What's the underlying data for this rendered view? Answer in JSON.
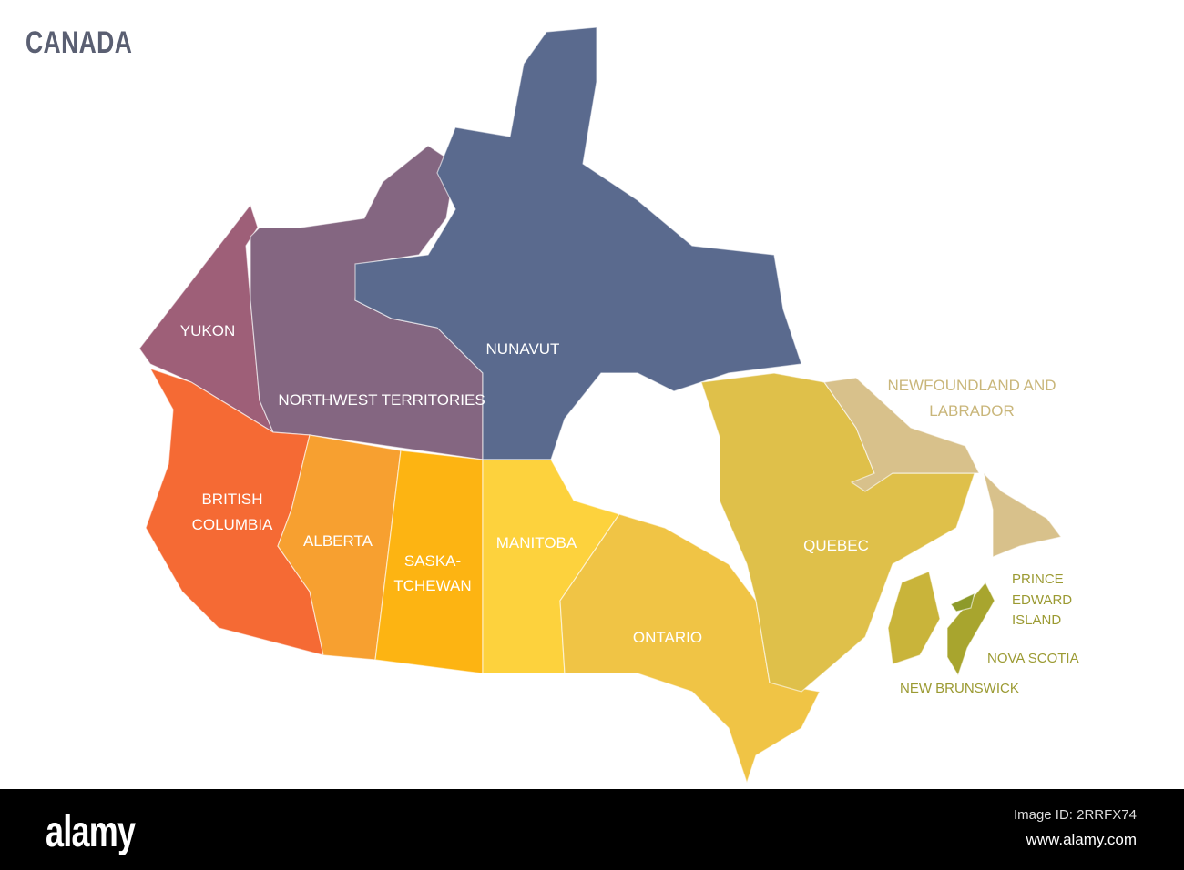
{
  "title": "CANADA",
  "regions": {
    "yukon": {
      "label": "YUKON",
      "color": "#9e5f78"
    },
    "nwt": {
      "label": "NORTHWEST TERRITORIES",
      "color": "#846681"
    },
    "nunavut": {
      "label": "NUNAVUT",
      "color": "#5a6a8e"
    },
    "bc": {
      "label1": "BRITISH",
      "label2": "COLUMBIA",
      "color": "#f56a34"
    },
    "alberta": {
      "label": "ALBERTA",
      "color": "#f7a030"
    },
    "saskatchewan": {
      "label1": "SASKA-",
      "label2": "TCHEWAN",
      "color": "#fdb412"
    },
    "manitoba": {
      "label": "MANITOBA",
      "color": "#fdd23d"
    },
    "ontario": {
      "label": "ONTARIO",
      "color": "#f0c445"
    },
    "quebec": {
      "label": "QUEBEC",
      "color": "#dfc04a"
    },
    "nl": {
      "label1": "NEWFOUNDLAND AND",
      "label2": "LABRADOR",
      "color": "#d8c18b"
    },
    "nb": {
      "label": "NEW BRUNSWICK",
      "color": "#c9b43a"
    },
    "ns": {
      "label": "NOVA SCOTIA",
      "color": "#a8a52e"
    },
    "pei": {
      "label1": "PRINCE",
      "label2": "EDWARD",
      "label3": "ISLAND",
      "color": "#8d9a2a"
    }
  },
  "footer": {
    "logo": "alamy",
    "image_id": "Image ID: 2RRFX74",
    "site": "www.alamy.com"
  }
}
